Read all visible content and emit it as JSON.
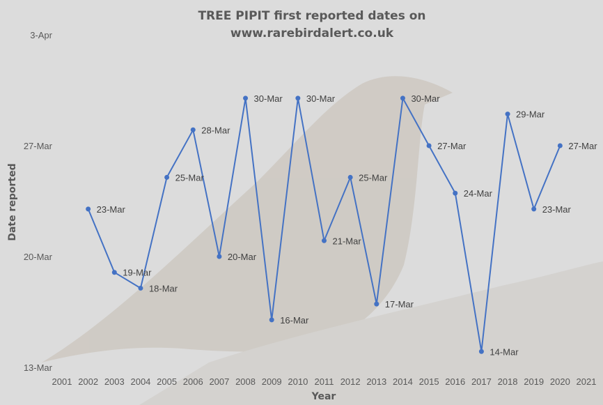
{
  "colors": {
    "line": "#4472c4",
    "text": "#595959",
    "background": "#dcdcdc"
  },
  "chart_data": {
    "type": "line",
    "title_lines": [
      "TREE PIPIT first reported dates on",
      "www.rarebirdalert.co.uk"
    ],
    "xlabel": "Year",
    "ylabel": "Date reported",
    "x_ticks": [
      "2001",
      "2002",
      "2003",
      "2004",
      "2005",
      "2006",
      "2007",
      "2008",
      "2009",
      "2010",
      "2011",
      "2012",
      "2013",
      "2014",
      "2015",
      "2016",
      "2017",
      "2018",
      "2019",
      "2020",
      "2021"
    ],
    "y_ticks": [
      "13-Mar",
      "20-Mar",
      "27-Mar",
      "3-Apr"
    ],
    "xlim": [
      2001,
      2021
    ],
    "ylim": [
      "13-Mar",
      "3-Apr"
    ],
    "grid": false,
    "legend": "none",
    "series": [
      {
        "x": [
          2002,
          2003,
          2004,
          2005,
          2006,
          2007,
          2008,
          2009,
          2010,
          2011,
          2012,
          2013,
          2014,
          2015,
          2016,
          2017,
          2018,
          2019,
          2020
        ],
        "y": [
          "23-Mar",
          "19-Mar",
          "18-Mar",
          "25-Mar",
          "28-Mar",
          "20-Mar",
          "30-Mar",
          "16-Mar",
          "30-Mar",
          "21-Mar",
          "25-Mar",
          "17-Mar",
          "30-Mar",
          "27-Mar",
          "24-Mar",
          "14-Mar",
          "29-Mar",
          "23-Mar",
          "27-Mar"
        ],
        "labels": [
          "23-Mar",
          "19-Mar",
          "18-Mar",
          "25-Mar",
          "28-Mar",
          "20-Mar",
          "30-Mar",
          "16-Mar",
          "30-Mar",
          "21-Mar",
          "25-Mar",
          "17-Mar",
          "30-Mar",
          "27-Mar",
          "24-Mar",
          "14-Mar",
          "29-Mar",
          "23-Mar",
          "27-Mar"
        ]
      }
    ]
  }
}
